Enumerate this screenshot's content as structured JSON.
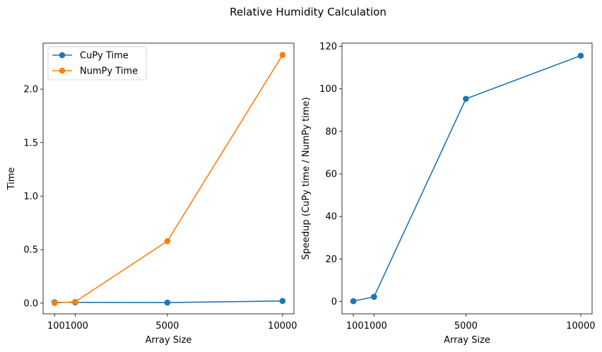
{
  "figure_title": "Relative Humidity Calculation",
  "chart_data": [
    {
      "type": "line",
      "xlabel": "Array Size",
      "ylabel": "Time",
      "x": [
        100,
        1000,
        5000,
        10000
      ],
      "xticks": [
        100,
        1000,
        5000,
        10000
      ],
      "xtick_labels": [
        "100",
        "1000",
        "5000",
        "10000"
      ],
      "xlim": [
        -395,
        10495
      ],
      "ylim": [
        -0.1,
        2.43
      ],
      "yticks": [
        0.0,
        0.5,
        1.0,
        1.5,
        2.0
      ],
      "ytick_labels": [
        "0.0",
        "0.5",
        "1.0",
        "1.5",
        "2.0"
      ],
      "legend_position": "top-left",
      "series": [
        {
          "name": "CuPy Time",
          "color": "#1f77b4",
          "values": [
            0.008,
            0.007,
            0.005,
            0.02
          ]
        },
        {
          "name": "NumPy Time",
          "color": "#ff7f0e",
          "values": [
            0.001,
            0.013,
            0.58,
            2.32
          ]
        }
      ]
    },
    {
      "type": "line",
      "xlabel": "Array Size",
      "ylabel": "Speedup (CuPy time / NumPy time)",
      "x": [
        100,
        1000,
        5000,
        10000
      ],
      "xticks": [
        100,
        1000,
        5000,
        10000
      ],
      "xtick_labels": [
        "100",
        "1000",
        "5000",
        "10000"
      ],
      "xlim": [
        -395,
        10495
      ],
      "ylim": [
        -5.8,
        121.5
      ],
      "yticks": [
        0,
        20,
        40,
        60,
        80,
        100,
        120
      ],
      "ytick_labels": [
        "0",
        "20",
        "40",
        "60",
        "80",
        "100",
        "120"
      ],
      "series": [
        {
          "name": "Speedup",
          "color": "#1f77b4",
          "values": [
            0.15,
            2.2,
            95.3,
            115.6
          ]
        }
      ]
    }
  ]
}
